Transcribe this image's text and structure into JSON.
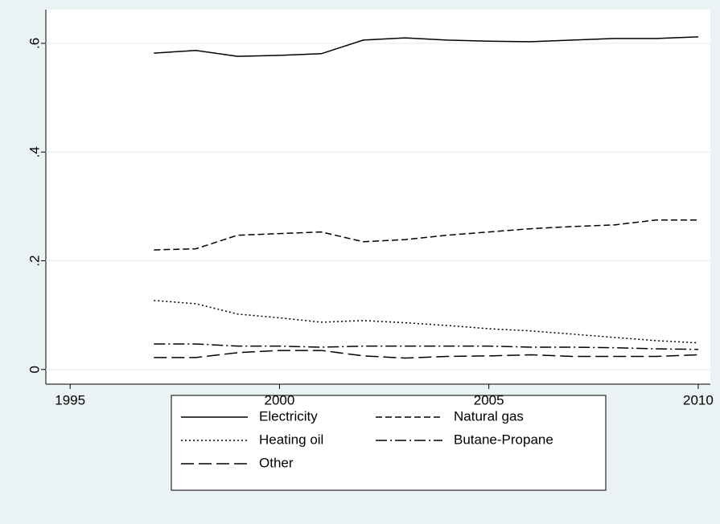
{
  "chart_data": {
    "type": "line",
    "x": [
      1997,
      1998,
      1999,
      2000,
      2001,
      2002,
      2003,
      2004,
      2005,
      2006,
      2007,
      2008,
      2009,
      2010
    ],
    "series": [
      {
        "name": "Electricity",
        "color": "#000000",
        "dash": "none",
        "values": [
          0.582,
          0.587,
          0.576,
          0.578,
          0.581,
          0.606,
          0.61,
          0.606,
          0.604,
          0.603,
          0.606,
          0.609,
          0.609,
          0.612
        ]
      },
      {
        "name": "Natural gas",
        "color": "#000000",
        "dash": "8,4",
        "values": [
          0.22,
          0.222,
          0.247,
          0.25,
          0.253,
          0.235,
          0.239,
          0.247,
          0.253,
          0.259,
          0.263,
          0.266,
          0.275,
          0.275
        ]
      },
      {
        "name": "Heating oil",
        "color": "#000000",
        "dash": "2,3",
        "values": [
          0.127,
          0.121,
          0.102,
          0.095,
          0.087,
          0.09,
          0.086,
          0.081,
          0.075,
          0.071,
          0.065,
          0.059,
          0.053,
          0.049
        ]
      },
      {
        "name": "Butane-Propane",
        "color": "#000000",
        "dash": "14,4,2,4",
        "values": [
          0.047,
          0.047,
          0.043,
          0.043,
          0.041,
          0.043,
          0.043,
          0.043,
          0.043,
          0.041,
          0.041,
          0.04,
          0.038,
          0.037
        ]
      },
      {
        "name": "Other",
        "color": "#000000",
        "dash": "16,6",
        "values": [
          0.022,
          0.022,
          0.031,
          0.035,
          0.035,
          0.025,
          0.021,
          0.024,
          0.025,
          0.027,
          0.024,
          0.024,
          0.024,
          0.027
        ]
      }
    ],
    "xlim": [
      1994.42,
      2010.29
    ],
    "xticks": [
      1995,
      2000,
      2005,
      2010
    ],
    "ylim": [
      -0.027,
      0.662
    ],
    "yticks": [
      0,
      {
        "value": 0.2,
        "label": ".2"
      },
      {
        "value": 0.4,
        "label": ".4"
      },
      {
        "value": 0.6,
        "label": ".6"
      }
    ],
    "grid": true
  }
}
